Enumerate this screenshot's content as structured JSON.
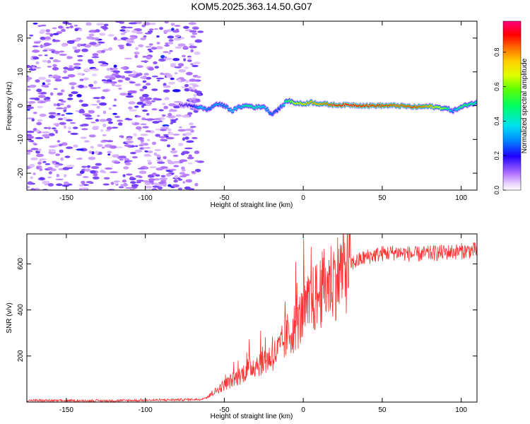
{
  "title": "KOM5.2025.363.14.50.G07",
  "chart_data": [
    {
      "type": "heatmap",
      "title": "KOM5.2025.363.14.50.G07",
      "xlabel": "Height of straight line (km)",
      "ylabel": "Frequency (Hz)",
      "xlim": [
        -175,
        110
      ],
      "ylim": [
        -25,
        25
      ],
      "xticks": [
        -150,
        -100,
        -50,
        0,
        50,
        100
      ],
      "yticks": [
        -20,
        -10,
        0,
        10,
        20
      ],
      "colorbar": {
        "label": "Normalized spectral amplitude",
        "range": [
          0,
          0.98
        ],
        "ticks": [
          0.0,
          0.2,
          0.4,
          0.6,
          0.8
        ]
      },
      "noise_region": {
        "x_from": -175,
        "x_to": -65,
        "freq_from": -25,
        "freq_to": 25,
        "amplitude": 0.12
      },
      "signal_ridge": {
        "x": [
          -78,
          -70,
          -65,
          -60,
          -55,
          -50,
          -45,
          -40,
          -35,
          -30,
          -25,
          -20,
          -15,
          -10,
          -5,
          0,
          5,
          10,
          20,
          30,
          40,
          50,
          60,
          70,
          80,
          90,
          95,
          100,
          105,
          110
        ],
        "freq": [
          0.2,
          0,
          -0.6,
          -1.2,
          0.5,
          0,
          -1.5,
          -0.3,
          0,
          -0.5,
          -0.2,
          -2.5,
          -0.8,
          1.5,
          0.8,
          0.5,
          1,
          0.6,
          0.2,
          0.2,
          0,
          0,
          0,
          -0.4,
          -0.2,
          -0.8,
          -1.5,
          -0.5,
          0.5,
          0.8
        ],
        "amplitude": [
          0.15,
          0.2,
          0.4,
          0.3,
          0.35,
          0.3,
          0.4,
          0.35,
          0.5,
          0.45,
          0.4,
          0.3,
          0.25,
          0.55,
          0.7,
          0.75,
          0.8,
          0.8,
          0.9,
          0.95,
          0.9,
          0.9,
          0.85,
          0.9,
          0.8,
          0.6,
          0.3,
          0.55,
          0.5,
          0.45
        ]
      }
    },
    {
      "type": "line",
      "xlabel": "Height of straight line (km)",
      "ylabel": "SNR (v/v)",
      "xlim": [
        -175,
        110
      ],
      "ylim": [
        0,
        730
      ],
      "xticks": [
        -150,
        -100,
        -50,
        0,
        50,
        100
      ],
      "yticks": [
        200,
        400,
        600
      ],
      "line_color": "#ff3030",
      "series": [
        {
          "name": "SNR",
          "x": [
            -175,
            -150,
            -120,
            -100,
            -80,
            -65,
            -60,
            -55,
            -50,
            -45,
            -40,
            -35,
            -30,
            -25,
            -20,
            -15,
            -10,
            -5,
            0,
            5,
            10,
            15,
            20,
            25,
            30,
            35,
            40,
            50,
            60,
            70,
            80,
            90,
            100,
            110
          ],
          "values": [
            7,
            6,
            6,
            8,
            10,
            12,
            25,
            50,
            75,
            95,
            115,
            145,
            165,
            180,
            195,
            230,
            290,
            330,
            380,
            430,
            470,
            515,
            540,
            570,
            600,
            615,
            630,
            645,
            650,
            640,
            645,
            650,
            655,
            660
          ]
        }
      ]
    }
  ]
}
